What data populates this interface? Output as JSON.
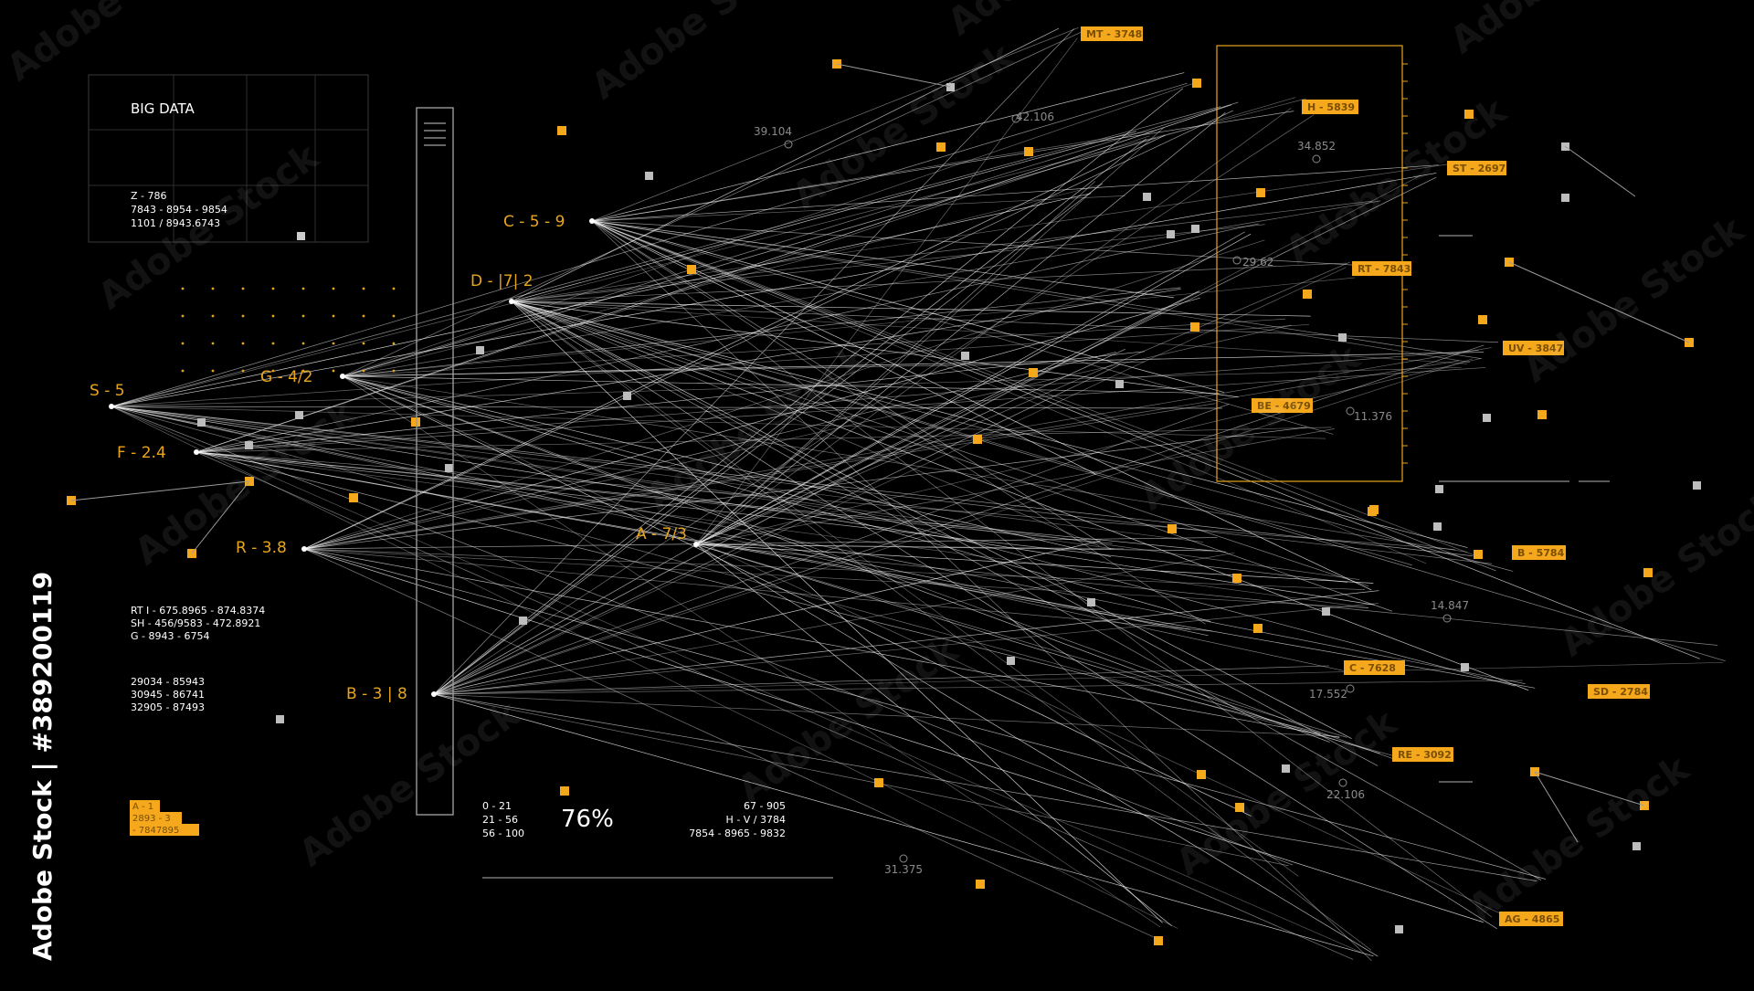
{
  "title_panel": {
    "title": "BIG DATA",
    "lines": [
      "Z - 786",
      "7843 - 8954 - 9854",
      "1101 / 8943.6743"
    ]
  },
  "info_blocks": [
    [
      "RT I - 675.8965 - 874.8374",
      "SH - 456/9583 - 472.8921",
      "G - 8943 - 6754"
    ],
    [
      "29034 - 85943",
      "30945 - 86741",
      "32905 - 87493"
    ]
  ],
  "bottom_left_tags": [
    "A - 1",
    "2893 - 3",
    "- 7847895"
  ],
  "source_nodes": [
    {
      "id": "C",
      "label": "C - 5 - 9"
    },
    {
      "id": "D",
      "label": "D - |7| 2"
    },
    {
      "id": "G",
      "label": "G - 4/2"
    },
    {
      "id": "S",
      "label": "S - 5"
    },
    {
      "id": "F",
      "label": "F - 2.4"
    },
    {
      "id": "R",
      "label": "R - 3.8"
    },
    {
      "id": "A",
      "label": "A - 7/3"
    },
    {
      "id": "B",
      "label": "B - 3 | 8"
    }
  ],
  "target_tags": [
    "MT - 3748",
    "H - 5839",
    "ST - 2697",
    "RT - 7843",
    "UV - 3847",
    "BE - 4679",
    "B - 5784",
    "C - 7628",
    "SD - 2784",
    "RE - 3092",
    "AG - 4865"
  ],
  "measurements": [
    "39.104",
    "42.106",
    "34.852",
    "29.62",
    "11.376",
    "14.847",
    "17.552",
    "22.106",
    "31.375"
  ],
  "progress": {
    "ranges": [
      "0 - 21",
      "21 - 56",
      "56 - 100"
    ],
    "percent_label": "76%",
    "percent_value": 76
  },
  "right_stats": [
    "67 - 905",
    "H - V / 3784",
    "7854 - 8965 - 9832"
  ],
  "watermark": {
    "text": "Adobe Stock",
    "side_text": "Adobe Stock | #389200119"
  },
  "colors": {
    "background": "#000000",
    "accent": "#f5a81c",
    "line": "#ffffff",
    "muted": "#8a8a8a"
  }
}
